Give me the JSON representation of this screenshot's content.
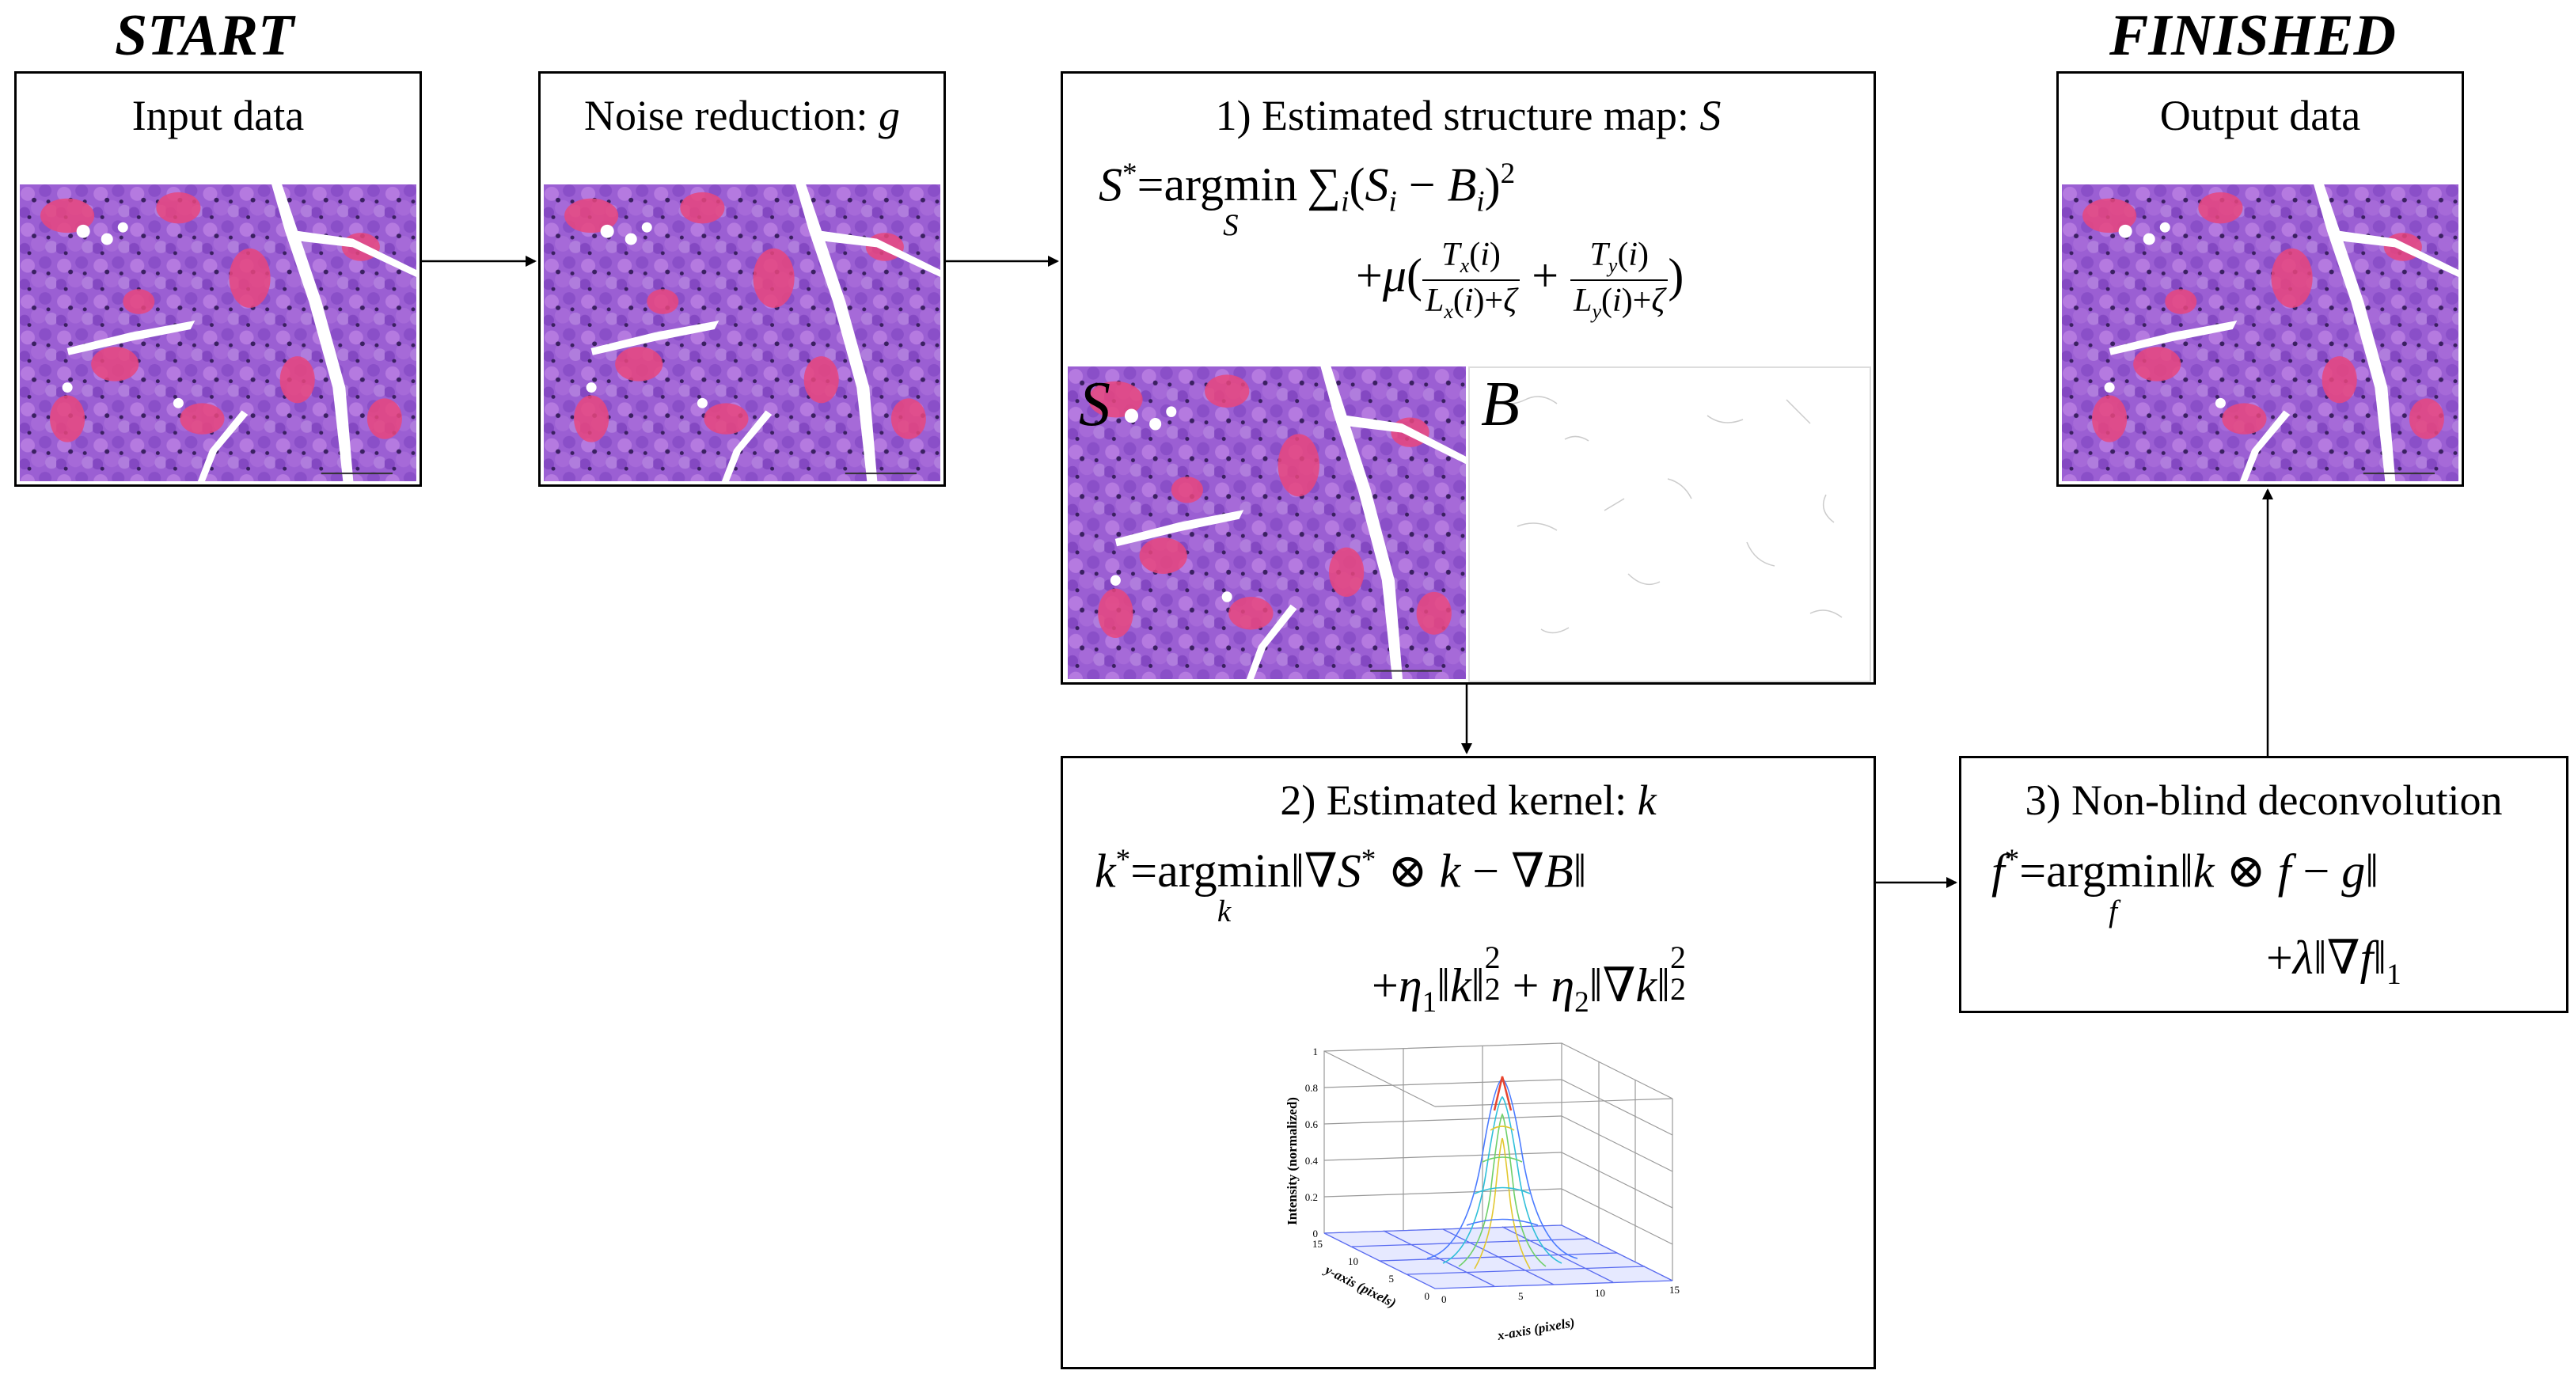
{
  "headings": {
    "start": "START",
    "finished": "FINISHED"
  },
  "input_box": {
    "title": "Input data"
  },
  "noise_box": {
    "title": "Noise reduction:",
    "title_var": "g"
  },
  "structure_box": {
    "title": "1) Estimated structure map:",
    "title_var": "S",
    "panel_s_label": "S",
    "panel_b_label": "B"
  },
  "kernel_box": {
    "title": "2) Estimated kernel:",
    "title_var": "k",
    "plot": {
      "zlabel": "Intensity (normalized)",
      "ylabel": "y-axis (pixels)",
      "xlabel": "x-axis (pixels)",
      "z_ticks": [
        "1",
        "0.8",
        "0.6",
        "0.4",
        "0.2",
        "0"
      ],
      "y_ticks": [
        "15",
        "10",
        "5",
        "0"
      ],
      "x_ticks": [
        "0",
        "5",
        "10",
        "15"
      ]
    }
  },
  "deconv_box": {
    "title": "3) Non-blind deconvolution"
  },
  "output_box": {
    "title": "Output data"
  },
  "colors": {
    "tissue_purple": "#9b5fd3",
    "tissue_pink": "#e8467e",
    "arrow": "#000000"
  }
}
